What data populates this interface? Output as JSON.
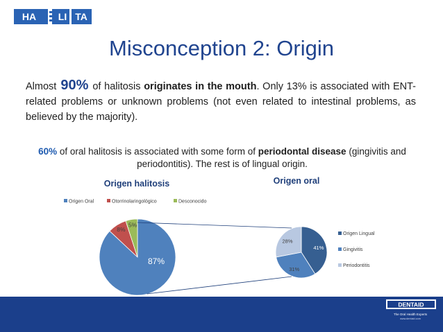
{
  "logo": {
    "parts": [
      "HA",
      "LI",
      "TA"
    ]
  },
  "slide": {
    "title": "Misconception 2: Origin",
    "p1": {
      "pre": "Almost",
      "big": "90%",
      "mid": "of halitosis",
      "bold": "originates in the mouth",
      "post": ". Only 13% is associated with ENT-related problems or unknown problems (not even related to intestinal problems, as believed by the majority)."
    },
    "p2": {
      "pct": "60%",
      "mid": "of oral halitosis is associated with some form of",
      "bold": "periodontal disease",
      "post": "(gingivitis and periodontitis). The rest is of lingual origin."
    }
  },
  "chart_data": [
    {
      "type": "pie",
      "title": "Origen halitosis",
      "legend_position": "top",
      "categories": [
        "Origen Oral",
        "Otorrinolaringológico",
        "Desconocido"
      ],
      "values": [
        87,
        8,
        5
      ],
      "labels": [
        "87%",
        "8%",
        "5%"
      ],
      "colors": [
        "#4f81bd",
        "#c0504d",
        "#9bbb59"
      ]
    },
    {
      "type": "pie",
      "title": "Origen oral",
      "legend_position": "right",
      "categories": [
        "Origen Lingual",
        "Gingivitis",
        "Periodontitis"
      ],
      "values": [
        41,
        31,
        28
      ],
      "labels": [
        "41%",
        "31%",
        "28%"
      ],
      "colors": [
        "#365f91",
        "#4f81bd",
        "#b8c8e1"
      ]
    }
  ],
  "footer": {
    "brand": "DENTAID",
    "tagline": "The Oral Health Experts",
    "url": "www.dentaid.com",
    "color": "#1b3f8b"
  }
}
